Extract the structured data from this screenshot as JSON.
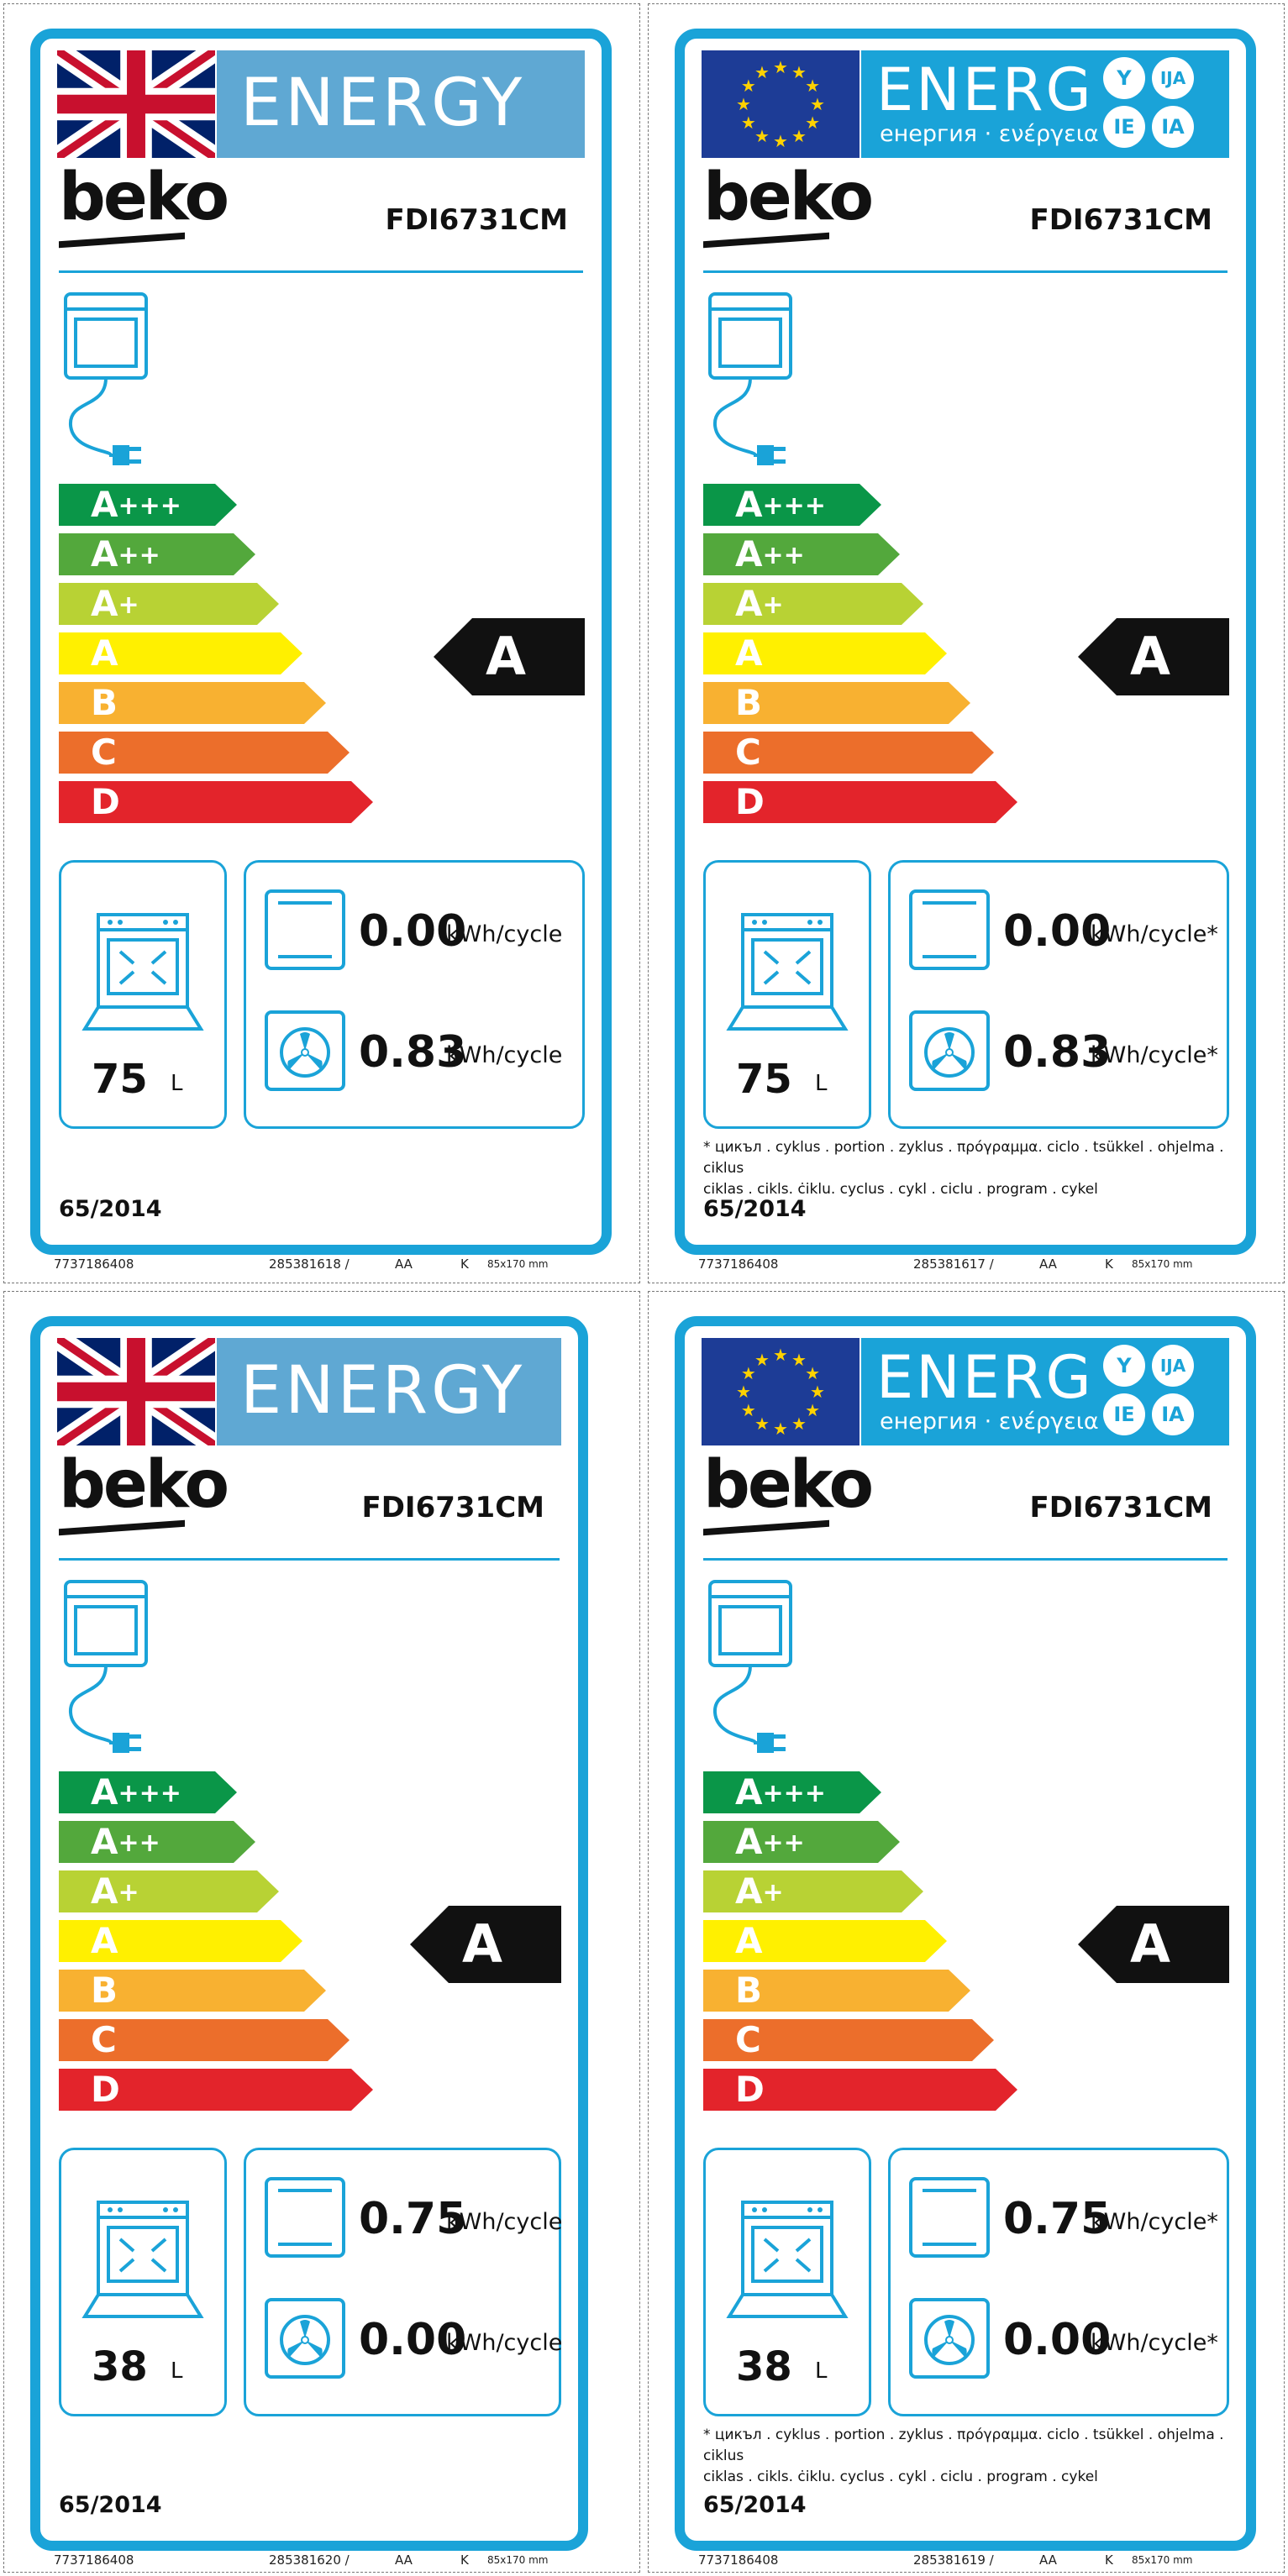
{
  "colors": {
    "label_blue": "#1aa3d8",
    "uk_energy_bg": "#5fa8d3",
    "eu_flag_bg": "#1d3c96",
    "eu_star": "#ffd200",
    "scale": [
      "#0a9648",
      "#53a83c",
      "#b8d234",
      "#fff000",
      "#f8b131",
      "#ec6e2b",
      "#e3242b"
    ]
  },
  "icons": {
    "flag_uk": "union-jack-flag",
    "flag_eu": "eu-flag",
    "appliance": "oven-plug-icon",
    "volume": "oven-cavity-icon",
    "conventional": "conventional-mode-icon",
    "fan": "fan-forced-icon"
  },
  "labels": [
    {
      "variant": "uk",
      "energy_word": "ENERGY",
      "brand": "beko",
      "model": "FDI6731CM",
      "scale": [
        {
          "letter": "A",
          "plus": "+++"
        },
        {
          "letter": "A",
          "plus": "++"
        },
        {
          "letter": "A",
          "plus": "+"
        },
        {
          "letter": "A",
          "plus": ""
        },
        {
          "letter": "B",
          "plus": ""
        },
        {
          "letter": "C",
          "plus": ""
        },
        {
          "letter": "D",
          "plus": ""
        }
      ],
      "rating": "A",
      "volume": "75",
      "volume_unit": "L",
      "conventional_value": "0.00",
      "conventional_unit": "kWh/cycle",
      "fan_value": "0.83",
      "fan_unit": "kWh/cycle",
      "regulation": "65/2014",
      "meta": {
        "code1": "7737186408",
        "code2": "285381618 /",
        "code3": "AA",
        "code4": "K",
        "size": "85x170 mm"
      }
    },
    {
      "variant": "eu",
      "energy_word": "ENERG",
      "energy_sub": "енергия · ενέργεια",
      "circles": [
        "Y",
        "IJA",
        "IE",
        "IA"
      ],
      "brand": "beko",
      "model": "FDI6731CM",
      "scale": [
        {
          "letter": "A",
          "plus": "+++"
        },
        {
          "letter": "A",
          "plus": "++"
        },
        {
          "letter": "A",
          "plus": "+"
        },
        {
          "letter": "A",
          "plus": ""
        },
        {
          "letter": "B",
          "plus": ""
        },
        {
          "letter": "C",
          "plus": ""
        },
        {
          "letter": "D",
          "plus": ""
        }
      ],
      "rating": "A",
      "volume": "75",
      "volume_unit": "L",
      "conventional_value": "0.00",
      "conventional_unit": "kWh/cycle*",
      "fan_value": "0.83",
      "fan_unit": "kWh/cycle*",
      "footnote_1": "* цикъл . cyklus . portion . zyklus . πρόγραμμα. ciclo . tsükkel . ohjelma . ciklus",
      "footnote_2": "ciklas . cikls. ċiklu. cyclus . cykl . ciclu . program . cykel",
      "regulation": "65/2014",
      "meta": {
        "code1": "7737186408",
        "code2": "285381617 /",
        "code3": "AA",
        "code4": "K",
        "size": "85x170 mm"
      }
    },
    {
      "variant": "uk",
      "energy_word": "ENERGY",
      "brand": "beko",
      "model": "FDI6731CM",
      "scale": [
        {
          "letter": "A",
          "plus": "+++"
        },
        {
          "letter": "A",
          "plus": "++"
        },
        {
          "letter": "A",
          "plus": "+"
        },
        {
          "letter": "A",
          "plus": ""
        },
        {
          "letter": "B",
          "plus": ""
        },
        {
          "letter": "C",
          "plus": ""
        },
        {
          "letter": "D",
          "plus": ""
        }
      ],
      "rating": "A",
      "volume": "38",
      "volume_unit": "L",
      "conventional_value": "0.75",
      "conventional_unit": "kWh/cycle",
      "fan_value": "0.00",
      "fan_unit": "kWh/cycle",
      "regulation": "65/2014",
      "meta": {
        "code1": "7737186408",
        "code2": "285381620 /",
        "code3": "AA",
        "code4": "K",
        "size": "85x170 mm"
      }
    },
    {
      "variant": "eu",
      "energy_word": "ENERG",
      "energy_sub": "енергия · ενέργεια",
      "circles": [
        "Y",
        "IJA",
        "IE",
        "IA"
      ],
      "brand": "beko",
      "model": "FDI6731CM",
      "scale": [
        {
          "letter": "A",
          "plus": "+++"
        },
        {
          "letter": "A",
          "plus": "++"
        },
        {
          "letter": "A",
          "plus": "+"
        },
        {
          "letter": "A",
          "plus": ""
        },
        {
          "letter": "B",
          "plus": ""
        },
        {
          "letter": "C",
          "plus": ""
        },
        {
          "letter": "D",
          "plus": ""
        }
      ],
      "rating": "A",
      "volume": "38",
      "volume_unit": "L",
      "conventional_value": "0.75",
      "conventional_unit": "kWh/cycle*",
      "fan_value": "0.00",
      "fan_unit": "kWh/cycle*",
      "footnote_1": "* цикъл . cyklus . portion . zyklus . πρόγραμμα. ciclo . tsükkel . ohjelma . ciklus",
      "footnote_2": "ciklas . cikls. ċiklu. cyclus . cykl . ciclu . program . cykel",
      "regulation": "65/2014",
      "meta": {
        "code1": "7737186408",
        "code2": "285381619 /",
        "code3": "AA",
        "code4": "K",
        "size": "85x170 mm"
      }
    }
  ]
}
